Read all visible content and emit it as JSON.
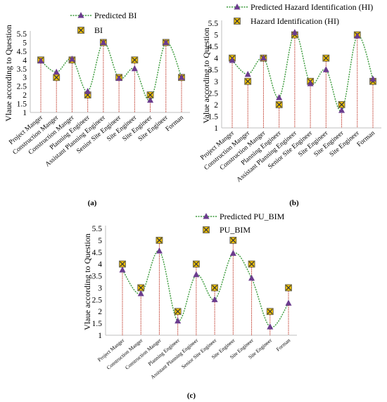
{
  "panels": [
    {
      "panel_label": "(a)",
      "legend_predicted": "Predicted BI",
      "legend_actual": "BI"
    },
    {
      "panel_label": "(b)",
      "legend_predicted": "Predicted Hazard Identification (HI)",
      "legend_actual": "Hazard Identification (HI)"
    },
    {
      "panel_label": "(c)",
      "legend_predicted": "Predicted PU_BIM",
      "legend_actual": "PU_BIM"
    }
  ],
  "colors": {
    "predicted_line": "#3a9a3a",
    "predicted_marker": "#6b3c8e",
    "actual_marker_fill": "#f0c000",
    "actual_marker_x": "#3a3a3a",
    "drop_line": "#c0392b"
  },
  "chart_data": [
    {
      "type": "line",
      "title": "",
      "ylabel": "Vlaue according to Question",
      "ylim": [
        1,
        5.5
      ],
      "yticks": [
        "1",
        "1.5",
        "2",
        "2.5",
        "3",
        "3.5",
        "4",
        "4.5",
        "5",
        "5.5"
      ],
      "grid": false,
      "legend": "top",
      "categories": [
        "Project Manger",
        "Construction Manger",
        "Construction Manger",
        "Planning Engineer",
        "Assistant Planning Engineer",
        "Senior Site Engineer",
        "Site Engineer",
        "Site Engineer",
        "Site Engineer",
        "Forman"
      ],
      "series": [
        {
          "name": "Predicted BI",
          "values": [
            3.95,
            3.3,
            4.05,
            2.2,
            5.0,
            2.95,
            3.5,
            1.7,
            5.0,
            3.0
          ]
        },
        {
          "name": "BI",
          "values": [
            4,
            3,
            4,
            2,
            5,
            3,
            4,
            2,
            5,
            3
          ]
        }
      ]
    },
    {
      "type": "line",
      "title": "",
      "ylabel": "Value according to Question",
      "ylim": [
        1,
        5.5
      ],
      "yticks": [
        "1",
        "1.5",
        "2",
        "2.5",
        "3",
        "3.5",
        "4",
        "4.5",
        "5",
        "5.5"
      ],
      "grid": false,
      "legend": "top",
      "categories": [
        "Project Manger",
        "Construction Manger",
        "Construction Manger",
        "Planning Engineer",
        "Assistant Planning Engineer",
        "Senior Site Engineer",
        "Site Engineer",
        "Site Engineer",
        "Site Engineer",
        "Forman"
      ],
      "series": [
        {
          "name": "Predicted Hazard Identification (HI)",
          "values": [
            3.9,
            3.3,
            4.0,
            2.3,
            5.1,
            2.9,
            3.5,
            1.75,
            4.95,
            3.1
          ]
        },
        {
          "name": "Hazard Identification (HI)",
          "values": [
            4,
            3,
            4,
            2,
            5,
            3,
            4,
            2,
            5,
            3
          ]
        }
      ]
    },
    {
      "type": "line",
      "title": "",
      "ylabel": "Vlaue according to Question",
      "ylim": [
        1,
        5.5
      ],
      "yticks": [
        "1",
        "1.5",
        "2",
        "2.5",
        "3",
        "3.5",
        "4",
        "4.5",
        "5",
        "5.5"
      ],
      "grid": false,
      "legend": "top",
      "categories": [
        "Project Manger",
        "Construction Manger",
        "Construction Manger",
        "Planning Engineer",
        "Assistant Planning Engineer",
        "Senior Site Engineer",
        "Site Engineer",
        "Site Engineer",
        "Site Engineer",
        "Forman"
      ],
      "series": [
        {
          "name": "Predicted PU_BIM",
          "values": [
            3.75,
            2.75,
            4.55,
            1.6,
            3.55,
            2.5,
            4.45,
            3.4,
            1.35,
            2.35
          ]
        },
        {
          "name": "PU_BIM",
          "values": [
            4,
            3,
            5,
            2,
            4,
            3,
            5,
            4,
            2,
            3
          ]
        }
      ]
    }
  ]
}
